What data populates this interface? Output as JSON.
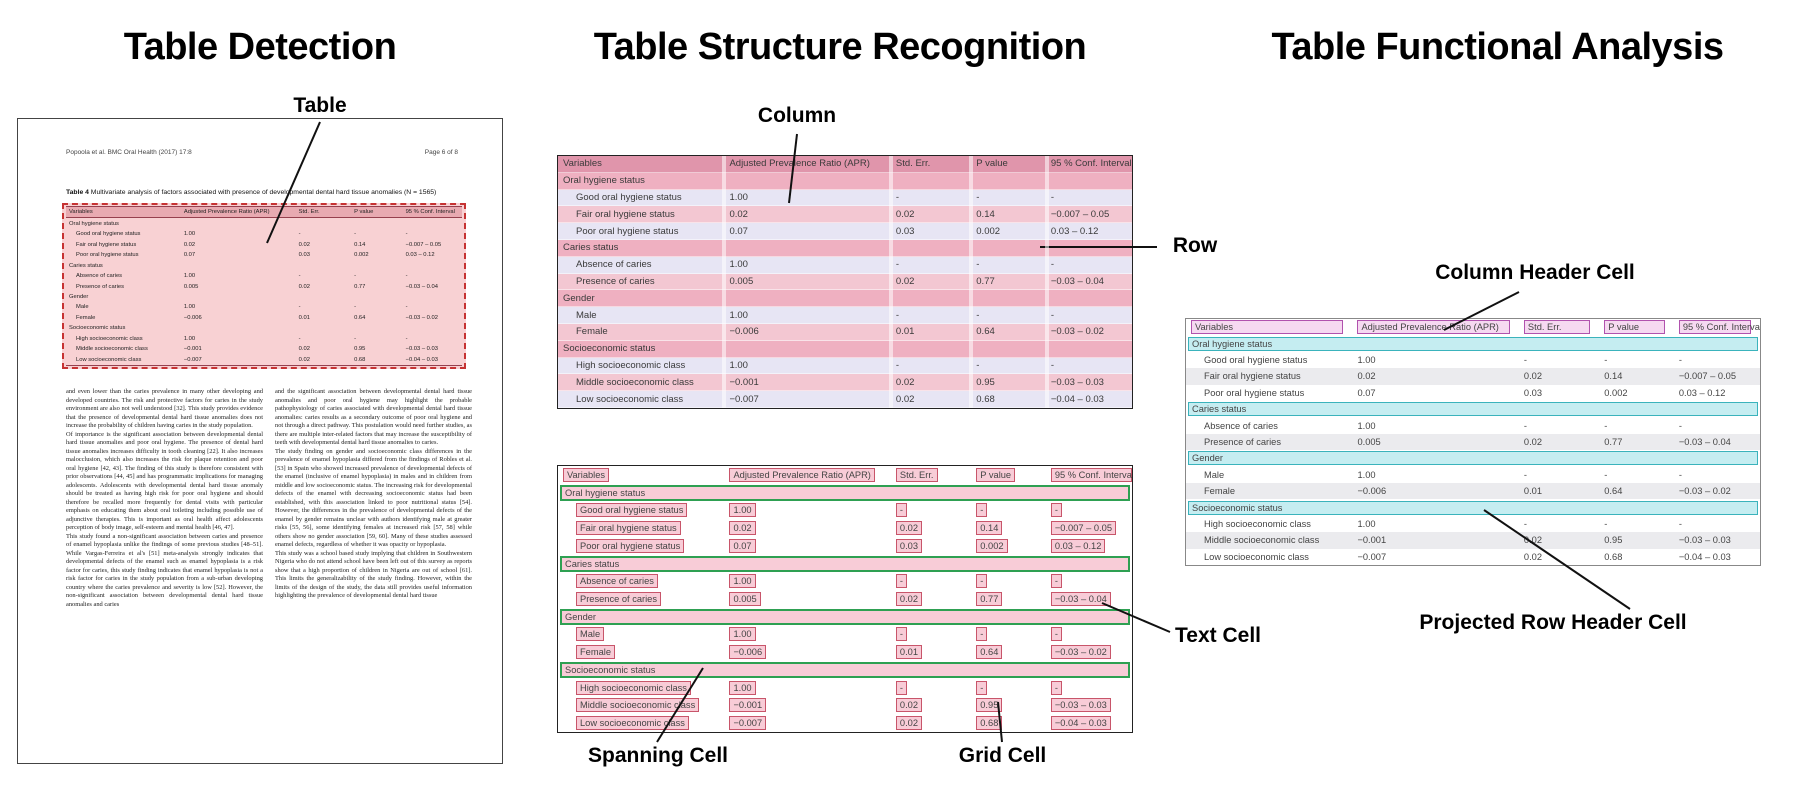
{
  "titles": {
    "detection": "Table Detection",
    "structure": "Table Structure Recognition",
    "functional": "Table Functional Analysis"
  },
  "labels": {
    "table": "Table",
    "column": "Column",
    "row": "Row",
    "spanning_cell": "Spanning Cell",
    "grid_cell": "Grid Cell",
    "text_cell": "Text Cell",
    "column_header_cell": "Column Header Cell",
    "projected_row_header_cell": "Projected Row Header Cell"
  },
  "document": {
    "header_left": "Popoola et al. BMC Oral Health  (2017) 17:8",
    "header_right": "Page 6 of 8",
    "caption_bold": "Table 4",
    "caption_rest": " Multivariate analysis of factors associated with presence of developmental dental hard tissue anomalies (N = 1565)",
    "body_col1": "and even lower than the caries prevalence in many other developing and developed countries. The risk and protective factors for caries in the study environment are also not well understood [32]. This study provides evidence that the presence of developmental dental hard tissue anomalies does not increase the probability of children having caries in the study population.\nOf importance is the significant association between developmental dental hard tissue anomalies and poor oral hygiene. The presence of dental hard tissue anomalies increases difficulty in tooth cleaning [22]. It also increases malocclusion, which also increases the risk for plaque retention and poor oral hygiene [42, 43]. The finding of this study is therefore consistent with prior observations [44, 45] and has programmatic implications for managing adolescents. Adolescents with developmental dental hard tissue anomaly should be treated as having high risk for poor oral hygiene and should therefore be recalled more frequently for dental visits with particular emphasis on educating them about oral toileting including possible use of adjunctive therapies. This is important as oral health affect adolescents perception of body image, self-esteem and mental health [46, 47].\nThis study found a non-significant association between caries and presence of enamel hypoplasia unlike the findings of some previous studies [48–51]. While Vargas-Ferreira et al's [51] meta-analysis strongly indicates that developmental defects of the enamel such as enamel hypoplasia is a risk factor for caries, this study finding indicates that enamel hypoplasia is not a risk factor for caries in the study population from a sub-urban developing country where the caries prevalence and severity is low [52]. However, the non-significant association between developmental dental hard tissue anomalies and caries",
    "body_col2": "and the significant association between developmental dental hard tissue anomalies and poor oral hygiene may highlight the probable pathophysiology of caries associated with developmental dental hard tissue anomalies: caries results as a secondary outcome of poor oral hygiene and not through a direct pathway. This postulation would need further studies, as there are multiple inter-related factors that may increase the susceptibility of teeth with developmental dental hard tissue anomalies to caries.\nThe study finding on gender and socioeconomic class differences in the prevalence of enamel hypoplasia differed from the findings of Robles et al. [53] in Spain who showed increased prevalence of developmental defects of the enamel (inclusive of enamel hypoplasia) in males and in children from middle and low socioeconomic status. The increasing risk for developmental defects of the enamel with decreasing socioeconomic status had been established, with this association linked to poor nutritional status [54]. However, the differences in the prevalence of developmental defects of the enamel by gender remains unclear with authors identifying male at greater risks [55, 56], some identifying females at increased risk [57, 58] while others show no gender association [59, 60]. Many of these studies assessed enamel defects, regardless of whether it was opacity or hypoplasia.\nThis study was a school based study implying that children in Southwestern Nigeria who do not attend school have been left out of this survey as reports show that a high proportion of children in Nigeria are out of school [61]. This limits the generalizability of the study finding. However, within the limits of the design of the study, the data still provides useful information highlighting the prevalence of developmental dental hard tissue"
  },
  "table": {
    "headers": [
      "Variables",
      "Adjusted Prevalence Ratio (APR)",
      "Std. Err.",
      "P value",
      "95 % Conf. Interval"
    ],
    "sections": [
      {
        "label": "Oral hygiene status",
        "rows": [
          [
            "Good oral hygiene status",
            "1.00",
            "-",
            "-",
            "-"
          ],
          [
            "Fair oral hygiene status",
            "0.02",
            "0.02",
            "0.14",
            "−0.007 – 0.05"
          ],
          [
            "Poor oral hygiene status",
            "0.07",
            "0.03",
            "0.002",
            "0.03 – 0.12"
          ]
        ]
      },
      {
        "label": "Caries status",
        "rows": [
          [
            "Absence of caries",
            "1.00",
            "-",
            "-",
            "-"
          ],
          [
            "Presence of caries",
            "0.005",
            "0.02",
            "0.77",
            "−0.03 – 0.04"
          ]
        ]
      },
      {
        "label": "Gender",
        "rows": [
          [
            "Male",
            "1.00",
            "-",
            "-",
            "-"
          ],
          [
            "Female",
            "−0.006",
            "0.01",
            "0.64",
            "−0.03 – 0.02"
          ]
        ]
      },
      {
        "label": "Socioeconomic status",
        "rows": [
          [
            "High socioeconomic class",
            "1.00",
            "-",
            "-",
            "-"
          ],
          [
            "Middle socioeconomic class",
            "−0.001",
            "0.02",
            "0.95",
            "−0.03 – 0.03"
          ],
          [
            "Low socioeconomic class",
            "−0.007",
            "0.02",
            "0.68",
            "−0.04 – 0.03"
          ]
        ]
      }
    ]
  },
  "colors": {
    "detection_fill": "#f2a3a8",
    "detection_border": "#c63333",
    "structure_column_pink": "#f3c7d2",
    "structure_row_lavender": "#e7e5f4",
    "structure_header_pink": "#e095ab",
    "cell_box_fill": "#f8ccd7",
    "cell_box_border": "#c8556a",
    "spanning_cell_border": "#2ea052",
    "column_header_border": "#b152ae",
    "column_header_fill": "#f6d9f1",
    "projected_row_fill": "#c5edf1",
    "projected_row_border": "#3ab3bc"
  }
}
